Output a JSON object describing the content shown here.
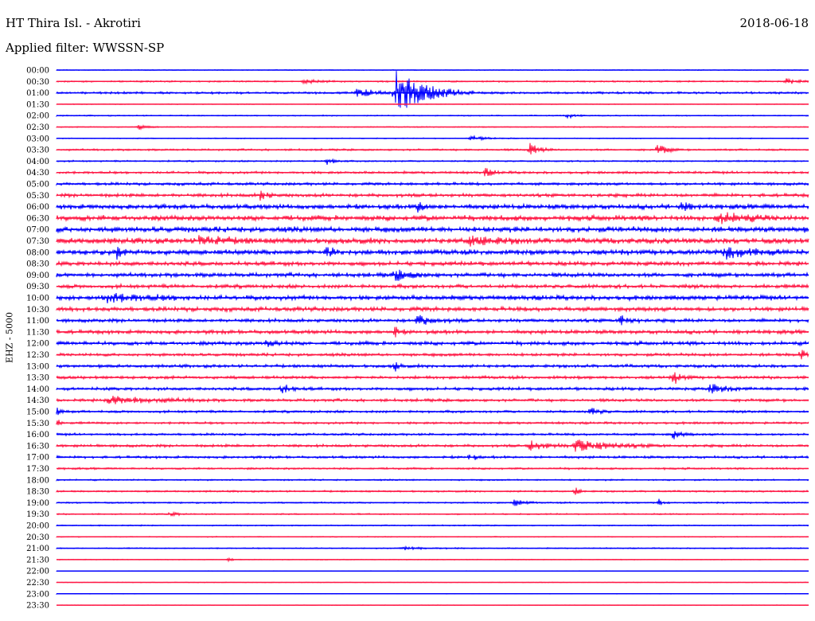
{
  "header": {
    "station": "HT Thira Isl. - Akrotiri",
    "date": "2018-06-18",
    "filter": "Applied filter: WWSSN-SP"
  },
  "chart_data": {
    "type": "line",
    "ylabel": "EHZ - 5000",
    "colors": [
      "#0000ff",
      "#ff1744"
    ],
    "row_labels": [
      "00:00",
      "00:30",
      "01:00",
      "01:30",
      "02:00",
      "02:30",
      "03:00",
      "03:30",
      "04:00",
      "04:30",
      "05:00",
      "05:30",
      "06:00",
      "06:30",
      "07:00",
      "07:30",
      "08:00",
      "08:30",
      "09:00",
      "09:30",
      "10:00",
      "10:30",
      "11:00",
      "11:30",
      "12:00",
      "12:30",
      "13:00",
      "13:30",
      "14:00",
      "14:30",
      "15:00",
      "15:30",
      "16:00",
      "16:30",
      "17:00",
      "17:30",
      "18:00",
      "18:30",
      "19:00",
      "19:30",
      "20:00",
      "20:30",
      "21:00",
      "21:30",
      "22:00",
      "22:30",
      "23:00",
      "23:30"
    ],
    "noise_level": [
      0.4,
      0.8,
      1.2,
      0.4,
      0.6,
      0.5,
      0.5,
      1.0,
      0.8,
      1.3,
      1.5,
      1.8,
      2.5,
      2.8,
      3.0,
      3.0,
      2.8,
      2.2,
      2.2,
      2.0,
      2.5,
      2.3,
      1.8,
      2.0,
      2.0,
      1.6,
      1.6,
      1.6,
      1.6,
      1.5,
      1.3,
      1.2,
      1.2,
      1.4,
      1.3,
      1.0,
      0.8,
      0.9,
      0.8,
      0.7,
      0.6,
      0.5,
      0.6,
      0.4,
      0.3,
      0.3,
      0.3,
      0.3
    ],
    "events": [
      {
        "row": 2,
        "t": 0.45,
        "amp": 30,
        "dur": 0.035
      },
      {
        "row": 2,
        "t": 0.4,
        "amp": 6,
        "dur": 0.02
      },
      {
        "row": 1,
        "t": 0.33,
        "amp": 3,
        "dur": 0.015
      },
      {
        "row": 1,
        "t": 0.97,
        "amp": 3,
        "dur": 0.02
      },
      {
        "row": 4,
        "t": 0.68,
        "amp": 3,
        "dur": 0.01
      },
      {
        "row": 5,
        "t": 0.11,
        "amp": 3,
        "dur": 0.01
      },
      {
        "row": 6,
        "t": 0.55,
        "amp": 3,
        "dur": 0.02
      },
      {
        "row": 7,
        "t": 0.63,
        "amp": 9,
        "dur": 0.01
      },
      {
        "row": 7,
        "t": 0.8,
        "amp": 8,
        "dur": 0.01
      },
      {
        "row": 8,
        "t": 0.36,
        "amp": 4,
        "dur": 0.01
      },
      {
        "row": 9,
        "t": 0.57,
        "amp": 5,
        "dur": 0.01
      },
      {
        "row": 11,
        "t": 0.27,
        "amp": 6,
        "dur": 0.01
      },
      {
        "row": 12,
        "t": 0.48,
        "amp": 7,
        "dur": 0.01
      },
      {
        "row": 12,
        "t": 0.83,
        "amp": 6,
        "dur": 0.01
      },
      {
        "row": 13,
        "t": 0.88,
        "amp": 7,
        "dur": 0.03
      },
      {
        "row": 15,
        "t": 0.19,
        "amp": 6,
        "dur": 0.03
      },
      {
        "row": 15,
        "t": 0.55,
        "amp": 6,
        "dur": 0.03
      },
      {
        "row": 16,
        "t": 0.08,
        "amp": 8,
        "dur": 0.005
      },
      {
        "row": 16,
        "t": 0.36,
        "amp": 7,
        "dur": 0.01
      },
      {
        "row": 16,
        "t": 0.89,
        "amp": 8,
        "dur": 0.03
      },
      {
        "row": 18,
        "t": 0.45,
        "amp": 6,
        "dur": 0.02
      },
      {
        "row": 20,
        "t": 0.06,
        "amp": 6,
        "dur": 0.05
      },
      {
        "row": 22,
        "t": 0.48,
        "amp": 6,
        "dur": 0.02
      },
      {
        "row": 22,
        "t": 0.75,
        "amp": 7,
        "dur": 0.01
      },
      {
        "row": 23,
        "t": 0.45,
        "amp": 7,
        "dur": 0.005
      },
      {
        "row": 24,
        "t": 0.28,
        "amp": 6,
        "dur": 0.01
      },
      {
        "row": 25,
        "t": 0.99,
        "amp": 8,
        "dur": 0.005
      },
      {
        "row": 26,
        "t": 0.45,
        "amp": 7,
        "dur": 0.005
      },
      {
        "row": 27,
        "t": 0.82,
        "amp": 8,
        "dur": 0.01
      },
      {
        "row": 28,
        "t": 0.3,
        "amp": 6,
        "dur": 0.01
      },
      {
        "row": 28,
        "t": 0.87,
        "amp": 6,
        "dur": 0.02
      },
      {
        "row": 29,
        "t": 0.07,
        "amp": 6,
        "dur": 0.05
      },
      {
        "row": 30,
        "t": 0.0,
        "amp": 5,
        "dur": 0.005
      },
      {
        "row": 30,
        "t": 0.71,
        "amp": 6,
        "dur": 0.01
      },
      {
        "row": 31,
        "t": 0.0,
        "amp": 7,
        "dur": 0.003
      },
      {
        "row": 32,
        "t": 0.82,
        "amp": 6,
        "dur": 0.01
      },
      {
        "row": 33,
        "t": 0.63,
        "amp": 6,
        "dur": 0.02
      },
      {
        "row": 33,
        "t": 0.69,
        "amp": 8,
        "dur": 0.04
      },
      {
        "row": 34,
        "t": 0.55,
        "amp": 8,
        "dur": 0.005
      },
      {
        "row": 37,
        "t": 0.69,
        "amp": 6,
        "dur": 0.005
      },
      {
        "row": 38,
        "t": 0.61,
        "amp": 5,
        "dur": 0.01
      },
      {
        "row": 38,
        "t": 0.8,
        "amp": 6,
        "dur": 0.005
      },
      {
        "row": 39,
        "t": 0.15,
        "amp": 3,
        "dur": 0.01
      },
      {
        "row": 42,
        "t": 0.46,
        "amp": 2,
        "dur": 0.03
      },
      {
        "row": 43,
        "t": 0.23,
        "amp": 3,
        "dur": 0.005
      }
    ]
  }
}
